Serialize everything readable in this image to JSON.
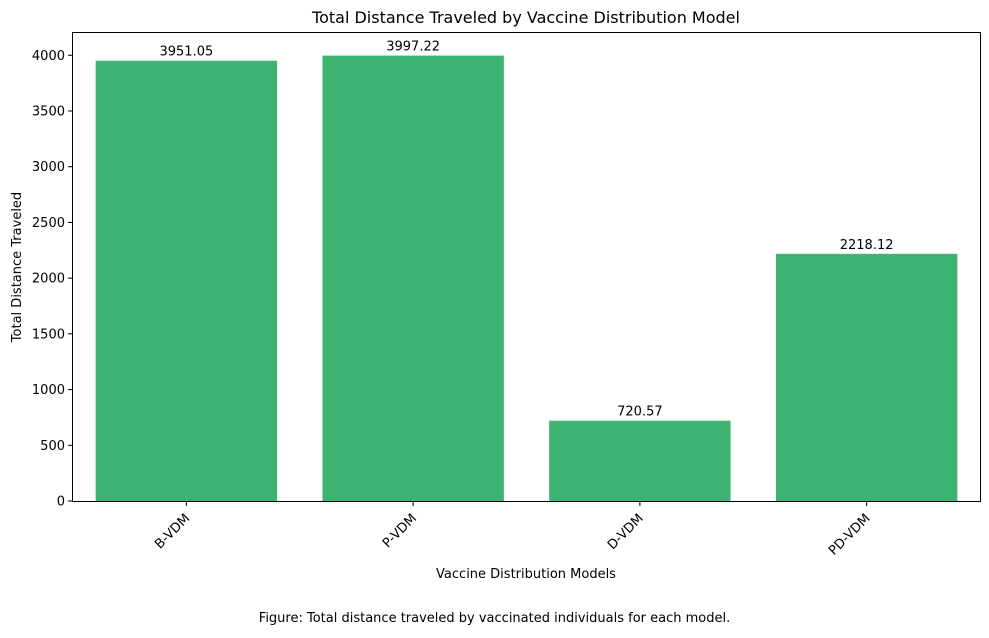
{
  "chart_data": {
    "type": "bar",
    "title": "Total Distance Traveled by Vaccine Distribution Model",
    "xlabel": "Vaccine Distribution Models",
    "ylabel": "Total Distance Traveled",
    "categories": [
      "B-VDM",
      "P-VDM",
      "D-VDM",
      "PD-VDM"
    ],
    "values": [
      3951.05,
      3997.22,
      720.57,
      2218.12
    ],
    "value_labels": [
      "3951.05",
      "3997.22",
      "720.57",
      "2218.12"
    ],
    "ylim": [
      0,
      4200
    ],
    "yticks": [
      0,
      500,
      1000,
      1500,
      2000,
      2500,
      3000,
      3500,
      4000
    ],
    "ytick_labels": [
      "0",
      "500",
      "1000",
      "1500",
      "2000",
      "2500",
      "3000",
      "3500",
      "4000"
    ],
    "xtick_rotation_deg": -45,
    "grid": false,
    "legend": "none",
    "bar_color": "#3cb371"
  },
  "caption": "Figure: Total distance traveled by vaccinated individuals for each model."
}
